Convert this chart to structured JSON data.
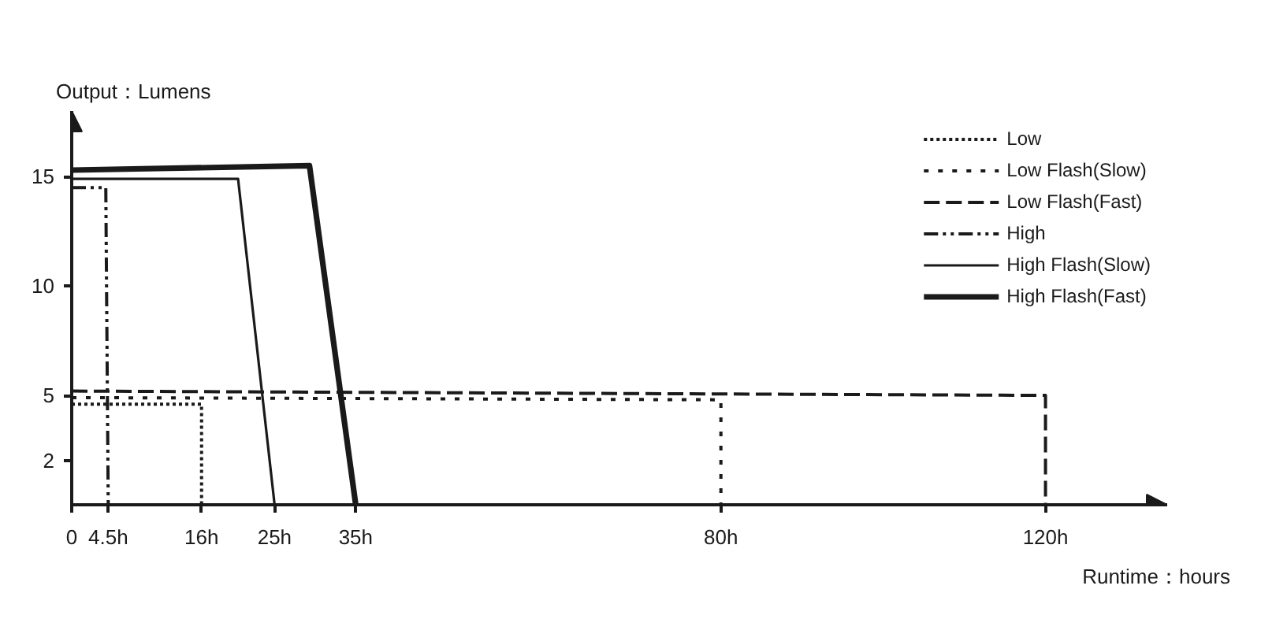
{
  "chart_data": {
    "type": "line",
    "xlabel": "Runtime：hours",
    "ylabel": "Output：Lumens",
    "xlim": [
      0,
      135
    ],
    "ylim": [
      0,
      18
    ],
    "xticks": [
      0,
      {
        "value": 4.5,
        "label": "4.5h"
      },
      {
        "value": 16,
        "label": "16h"
      },
      {
        "value": 25,
        "label": "25h"
      },
      {
        "value": 35,
        "label": "35h"
      },
      {
        "value": 80,
        "label": "80h"
      },
      {
        "value": 120,
        "label": "120h"
      }
    ],
    "yticks": [
      2,
      5,
      10,
      15
    ],
    "legend": "top right",
    "series": [
      {
        "name": "Low",
        "color": "#1a1a1a",
        "line_style": "dotted",
        "x": [
          0,
          16,
          16
        ],
        "values": [
          4.6,
          4.6,
          0
        ]
      },
      {
        "name": "Low Flash(Slow)",
        "color": "#1a1a1a",
        "line_style": "dashed",
        "x": [
          0,
          80,
          80
        ],
        "values": [
          4.9,
          4.8,
          0
        ]
      },
      {
        "name": "Low Flash(Fast)",
        "color": "#1a1a1a",
        "line_style": "longdash",
        "x": [
          0,
          120,
          120
        ],
        "values": [
          5.2,
          5.0,
          0
        ]
      },
      {
        "name": "High",
        "color": "#1a1a1a",
        "line_style": "dashdot",
        "x": [
          0,
          4.2,
          4.5
        ],
        "values": [
          14.5,
          14.5,
          0
        ]
      },
      {
        "name": "High Flash(Slow)",
        "color": "#1a1a1a",
        "line_style": "solid",
        "x": [
          0,
          20.5,
          25
        ],
        "values": [
          14.9,
          14.9,
          0
        ]
      },
      {
        "name": "High Flash(Fast)",
        "color": "#1a1a1a",
        "line_style": "solid",
        "x": [
          0,
          29.3,
          35
        ],
        "values": [
          15.3,
          15.5,
          0
        ]
      }
    ]
  }
}
